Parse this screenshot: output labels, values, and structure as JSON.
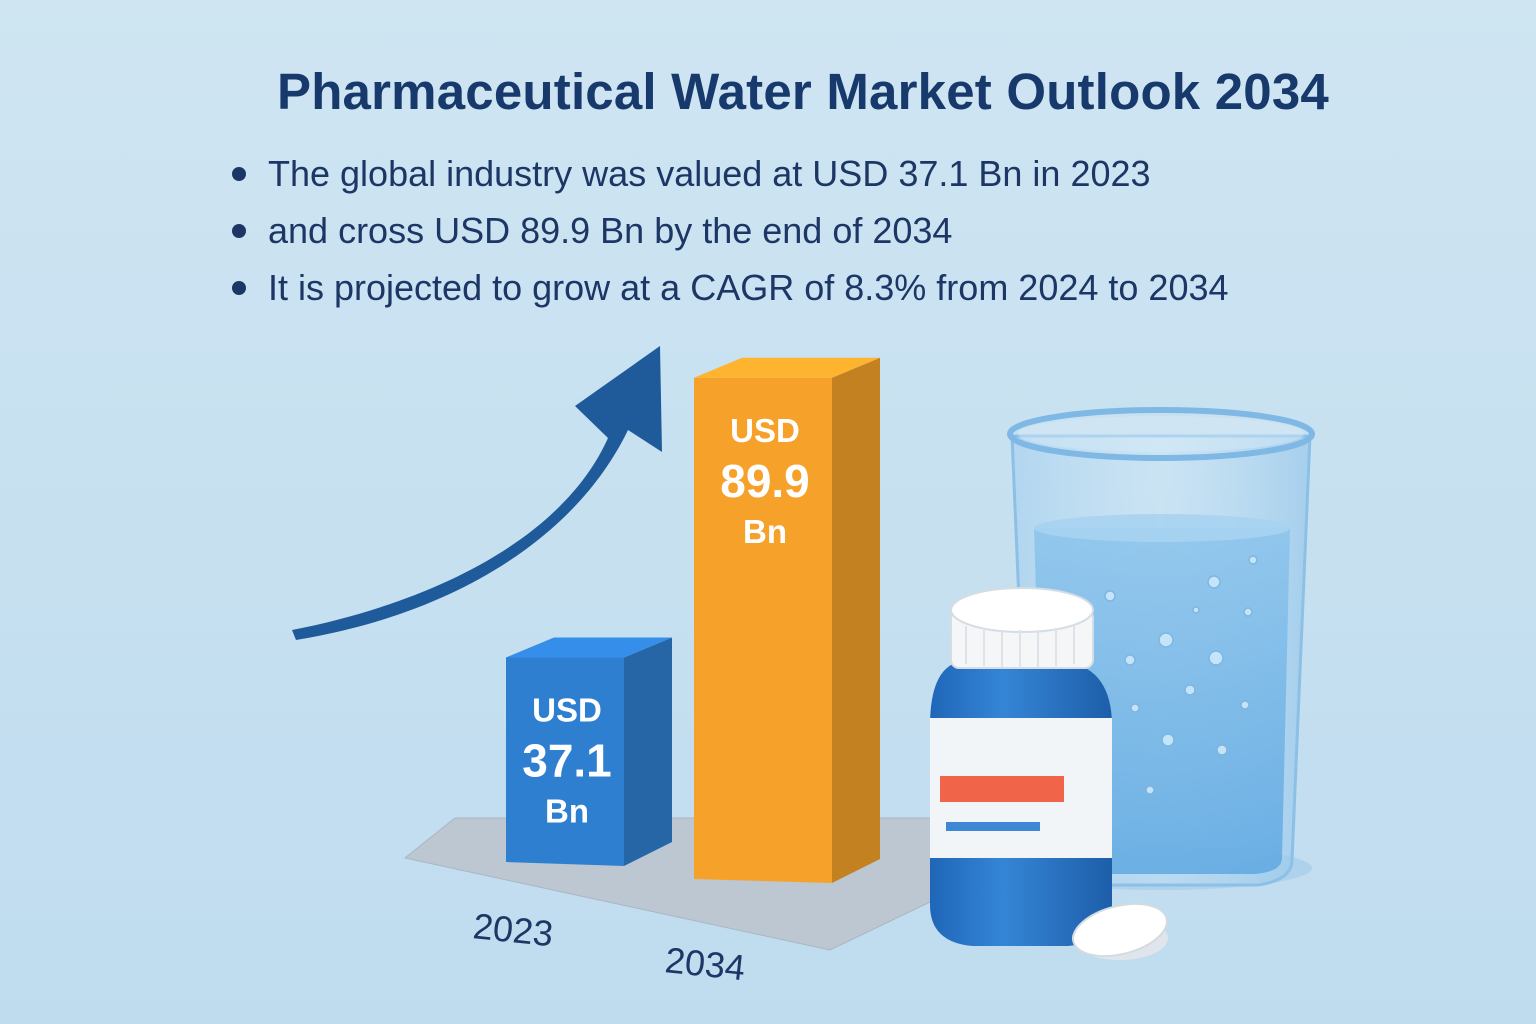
{
  "title": "Pharmaceutical Water Market Outlook 2034",
  "bullets": [
    "The global industry was valued at USD 37.1 Bn in 2023",
    "and cross USD 89.9 Bn by the end of 2034",
    "It is projected to grow at a CAGR of 8.3% from 2024 to 2034"
  ],
  "chart_data": {
    "type": "bar",
    "categories": [
      "2023",
      "2034"
    ],
    "values": [
      37.1,
      89.9
    ],
    "value_labels": [
      {
        "prefix": "USD",
        "value": "37.1",
        "unit": "Bn"
      },
      {
        "prefix": "USD",
        "value": "89.9",
        "unit": "Bn"
      }
    ],
    "colors": [
      "#2f7fd0",
      "#f5a12a"
    ],
    "title": "",
    "xlabel": "",
    "ylabel": ""
  },
  "decor": {
    "trend_arrow_color": "#1f5a9a",
    "icons": [
      "trend-arrow-icon",
      "medicine-bottle-icon",
      "water-beaker-icon",
      "pill-icon"
    ]
  }
}
